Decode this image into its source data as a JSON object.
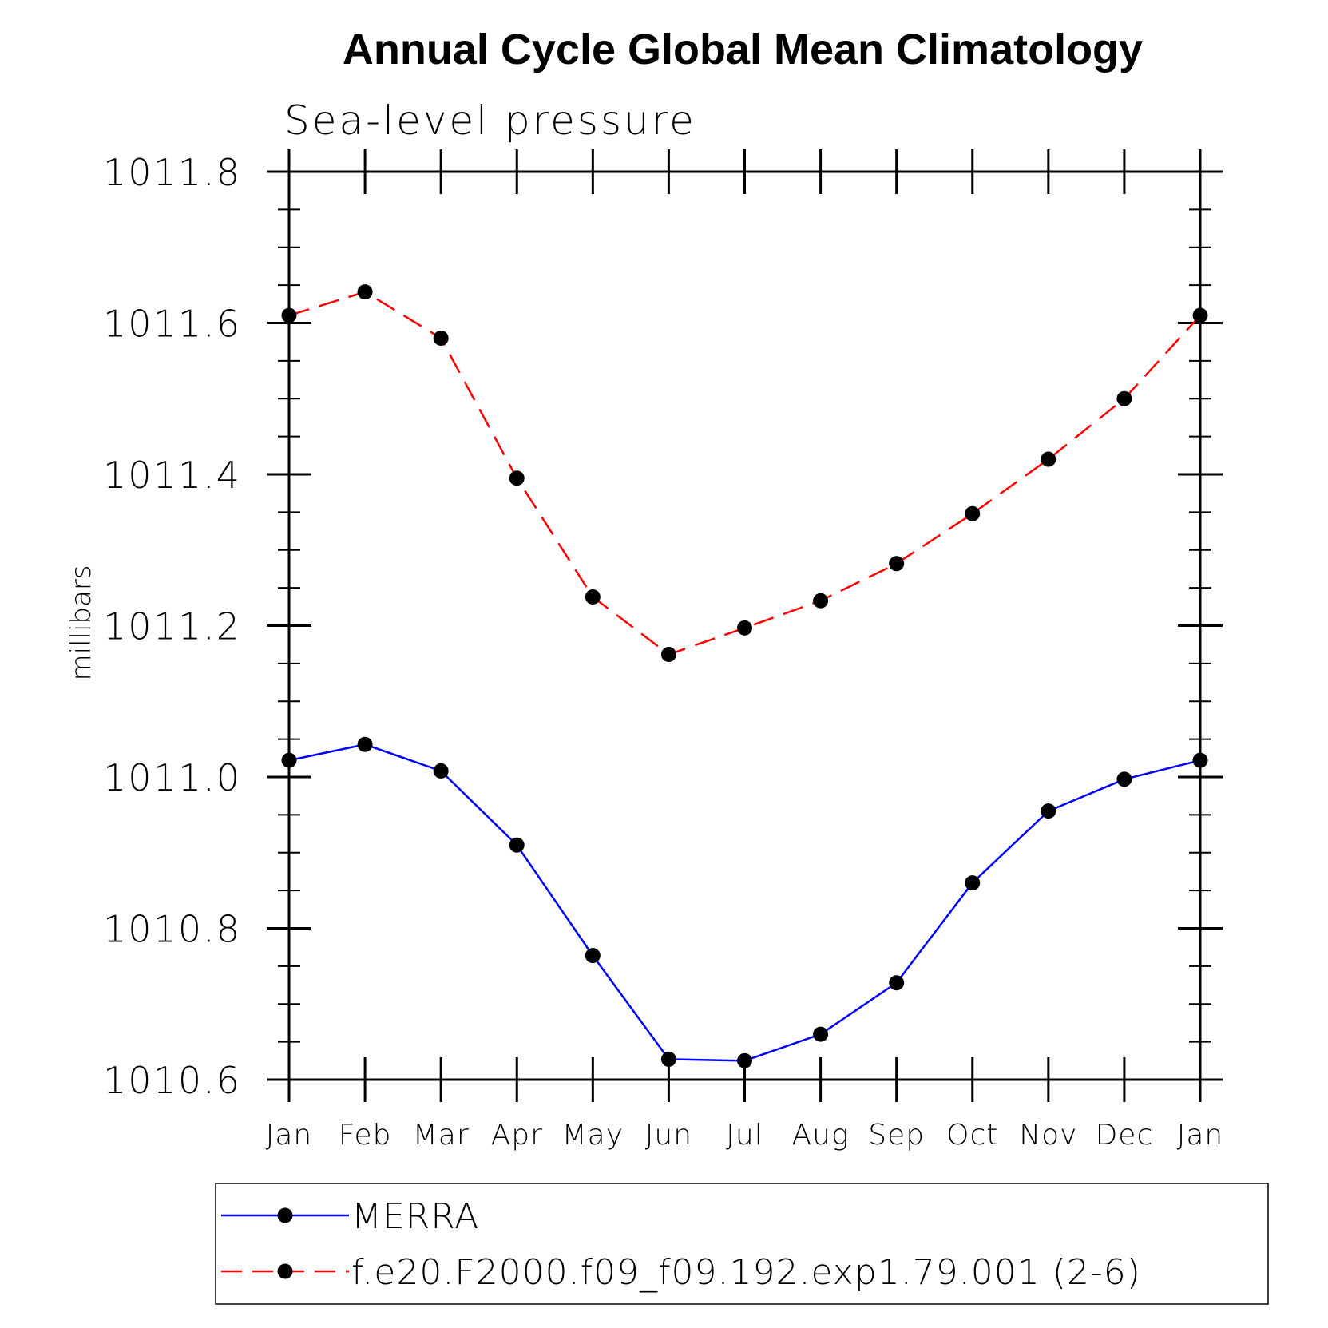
{
  "chart_data": {
    "type": "line",
    "title": "Annual Cycle Global Mean Climatology",
    "subtitle": "Sea-level pressure",
    "xlabel": "",
    "ylabel": "millibars",
    "categories": [
      "Jan",
      "Feb",
      "Mar",
      "Apr",
      "May",
      "Jun",
      "Jul",
      "Aug",
      "Sep",
      "Oct",
      "Nov",
      "Dec",
      "Jan"
    ],
    "ylim": [
      1010.6,
      1011.8
    ],
    "yticks": [
      "1010.6",
      "1010.8",
      "1011.0",
      "1011.2",
      "1011.4",
      "1011.6",
      "1011.8"
    ],
    "ytick_values": [
      1010.6,
      1010.8,
      1011.0,
      1011.2,
      1011.4,
      1011.6,
      1011.8
    ],
    "legend_position": "bottom",
    "series": [
      {
        "name": "MERRA",
        "color": "#0000ff",
        "line_style": "solid",
        "marker": "circle",
        "values": [
          1011.022,
          1011.043,
          1011.008,
          1010.91,
          1010.764,
          1010.627,
          1010.625,
          1010.66,
          1010.728,
          1010.86,
          1010.955,
          1010.997,
          1011.022
        ]
      },
      {
        "name": "f.e20.F2000.f09_f09.192.exp1.79.001 (2-6)",
        "color": "#ff0000",
        "line_style": "dashed",
        "marker": "circle",
        "values": [
          1011.61,
          1011.641,
          1011.58,
          1011.395,
          1011.238,
          1011.162,
          1011.197,
          1011.233,
          1011.282,
          1011.348,
          1011.42,
          1011.5,
          1011.61
        ]
      }
    ]
  }
}
